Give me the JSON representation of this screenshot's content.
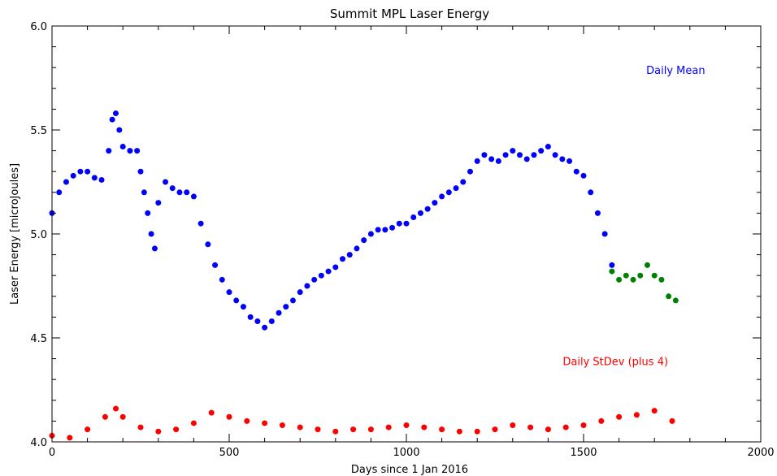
{
  "chart_data": {
    "type": "scatter",
    "title": "Summit MPL Laser Energy",
    "xlabel": "Days since 1 Jan 2016",
    "ylabel": "Laser Energy [microJoules]",
    "xlim": [
      0,
      2000
    ],
    "ylim": [
      4.0,
      6.0
    ],
    "x_ticks": [
      0,
      500,
      1000,
      1500,
      2000
    ],
    "y_ticks": [
      4.0,
      4.5,
      5.0,
      5.5,
      6.0
    ],
    "x_tick_labels": [
      "0",
      "500",
      "1000",
      "1500",
      "2000"
    ],
    "y_tick_labels": [
      "4.0",
      "4.5",
      "5.0",
      "5.5",
      "6.0"
    ],
    "grid": false,
    "annotations": [
      {
        "text": "Daily Mean",
        "color": "#0000ff",
        "x": 1760,
        "y": 5.77
      },
      {
        "text": "Daily StDev (plus 4)",
        "color": "#ff0000",
        "x": 1590,
        "y": 4.37
      }
    ],
    "series": [
      {
        "color": "#0000ff",
        "x": [
          0,
          20,
          40,
          60,
          80,
          100,
          120,
          140,
          160,
          170,
          180,
          190,
          200,
          220,
          240,
          250,
          260,
          270,
          280,
          290,
          300,
          320,
          340,
          360,
          380,
          400,
          420,
          440,
          460,
          480,
          500,
          520,
          540,
          560,
          580,
          600,
          620,
          640,
          660,
          680,
          700,
          720,
          740,
          760,
          780,
          800,
          820,
          840,
          860,
          880,
          900,
          920,
          940,
          960,
          980,
          1000,
          1020,
          1040,
          1060,
          1080,
          1100,
          1120,
          1140,
          1160,
          1180,
          1200,
          1220,
          1240,
          1260,
          1280,
          1300,
          1320,
          1340,
          1360,
          1380,
          1400,
          1420,
          1440,
          1460,
          1480,
          1500,
          1520,
          1540,
          1560,
          1580
        ],
        "y": [
          5.1,
          5.2,
          5.25,
          5.28,
          5.3,
          5.3,
          5.27,
          5.26,
          5.4,
          5.55,
          5.58,
          5.5,
          5.42,
          5.4,
          5.4,
          5.3,
          5.2,
          5.1,
          5.0,
          4.93,
          5.15,
          5.25,
          5.22,
          5.2,
          5.2,
          5.18,
          5.05,
          4.95,
          4.85,
          4.78,
          4.72,
          4.68,
          4.65,
          4.6,
          4.58,
          4.55,
          4.58,
          4.62,
          4.65,
          4.68,
          4.72,
          4.75,
          4.78,
          4.8,
          4.82,
          4.84,
          4.88,
          4.9,
          4.93,
          4.97,
          5.0,
          5.02,
          5.02,
          5.03,
          5.05,
          5.05,
          5.08,
          5.1,
          5.12,
          5.15,
          5.18,
          5.2,
          5.22,
          5.25,
          5.3,
          5.35,
          5.38,
          5.36,
          5.35,
          5.38,
          5.4,
          5.38,
          5.36,
          5.38,
          5.4,
          5.42,
          5.38,
          5.36,
          5.35,
          5.3,
          5.28,
          5.2,
          5.1,
          5.0,
          4.85
        ]
      },
      {
        "color": "#008000",
        "x": [
          1580,
          1600,
          1620,
          1640,
          1660,
          1680,
          1700,
          1720,
          1740,
          1760
        ],
        "y": [
          4.82,
          4.78,
          4.8,
          4.78,
          4.8,
          4.85,
          4.8,
          4.78,
          4.7,
          4.68
        ]
      },
      {
        "color": "#ff0000",
        "x": [
          0,
          50,
          100,
          150,
          180,
          200,
          250,
          300,
          350,
          400,
          450,
          500,
          550,
          600,
          650,
          700,
          750,
          800,
          850,
          900,
          950,
          1000,
          1050,
          1100,
          1150,
          1200,
          1250,
          1300,
          1350,
          1400,
          1450,
          1500,
          1550,
          1600,
          1650,
          1700,
          1750
        ],
        "y": [
          4.03,
          4.02,
          4.06,
          4.12,
          4.16,
          4.12,
          4.07,
          4.05,
          4.06,
          4.09,
          4.14,
          4.12,
          4.1,
          4.09,
          4.08,
          4.07,
          4.06,
          4.05,
          4.06,
          4.06,
          4.07,
          4.08,
          4.07,
          4.06,
          4.05,
          4.05,
          4.06,
          4.08,
          4.07,
          4.06,
          4.07,
          4.08,
          4.1,
          4.12,
          4.13,
          4.15,
          4.1
        ]
      }
    ]
  }
}
